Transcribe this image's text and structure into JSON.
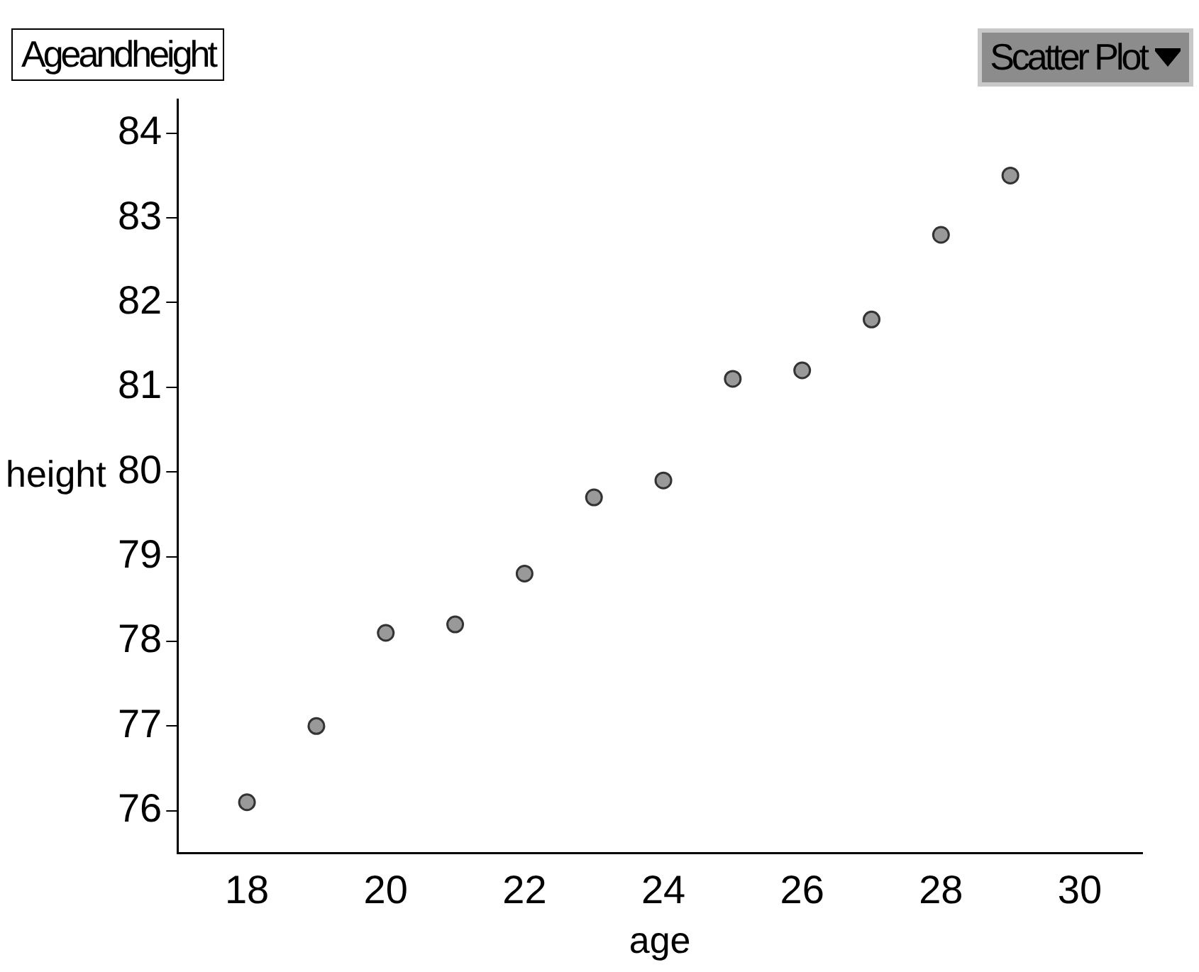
{
  "chart_data": {
    "type": "scatter",
    "title": "Ageandheight",
    "xlabel": "age",
    "ylabel": "height",
    "annotations": [
      "Scatter Plot"
    ],
    "x": [
      18,
      19,
      20,
      21,
      22,
      23,
      24,
      25,
      26,
      27,
      28,
      29
    ],
    "series": [
      {
        "color": "#999999",
        "values": [
          76.1,
          77.0,
          78.1,
          78.2,
          78.8,
          79.7,
          79.9,
          81.1,
          81.2,
          81.8,
          82.8,
          83.5
        ]
      }
    ],
    "xlim": [
      17,
      30.9
    ],
    "xticks": [
      18,
      20,
      22,
      24,
      26,
      28,
      30
    ],
    "ylim": [
      75.5,
      84.4
    ],
    "yticks": [
      76,
      77,
      78,
      79,
      80,
      81,
      82,
      83,
      84
    ],
    "grid": false,
    "legend": false,
    "marker": "circle"
  }
}
